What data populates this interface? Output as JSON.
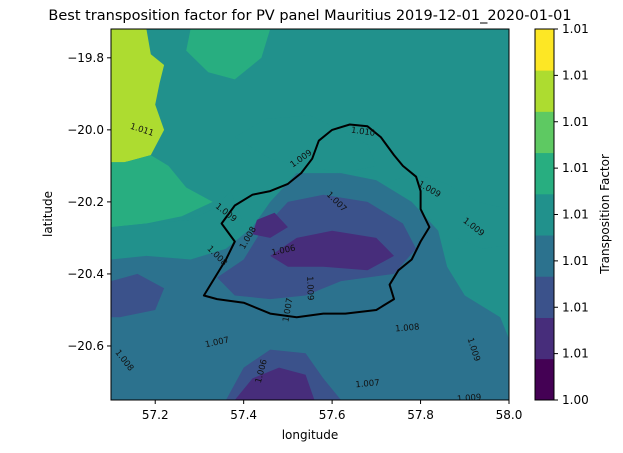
{
  "chart_data": {
    "type": "heatmap",
    "subtype": "filled-contour",
    "title": "Best transposition factor for PV panel Mauritius 2019-12-01_2020-01-01",
    "xlabel": "longitude",
    "ylabel": "latitude",
    "xlim": [
      57.1,
      58.0
    ],
    "ylim": [
      -20.75,
      -19.72
    ],
    "xticks": [
      {
        "value": 57.2,
        "label": "57.2"
      },
      {
        "value": 57.4,
        "label": "57.4"
      },
      {
        "value": 57.6,
        "label": "57.6"
      },
      {
        "value": 57.8,
        "label": "57.8"
      },
      {
        "value": 58.0,
        "label": "58.0"
      }
    ],
    "yticks": [
      {
        "value": -19.8,
        "label": "−19.8"
      },
      {
        "value": -20.0,
        "label": "−20.0"
      },
      {
        "value": -20.2,
        "label": "−20.2"
      },
      {
        "value": -20.4,
        "label": "−20.4"
      },
      {
        "value": -20.6,
        "label": "−20.6"
      }
    ],
    "colorbar": {
      "label": "Transposition Factor",
      "ticks": [
        "1.00",
        "1.01",
        "1.01",
        "1.01",
        "1.01",
        "1.01",
        "1.01",
        "1.01",
        "1.01"
      ],
      "colors": [
        "#440154",
        "#472d7b",
        "#3b528b",
        "#2c728e",
        "#21918c",
        "#28ae80",
        "#5ec962",
        "#addc30",
        "#fde725"
      ]
    },
    "contour_labels": [
      {
        "text": "1.011",
        "lon": 57.17,
        "lat": -20.0,
        "angle": 18
      },
      {
        "text": "1.010",
        "lon": 57.67,
        "lat": -20.005,
        "angle": 8
      },
      {
        "text": "1.009",
        "lon": 57.53,
        "lat": -20.08,
        "angle": -35
      },
      {
        "text": "1.009",
        "lon": 57.82,
        "lat": -20.165,
        "angle": 30
      },
      {
        "text": "1.007",
        "lon": 57.61,
        "lat": -20.2,
        "angle": 45
      },
      {
        "text": "1.009",
        "lon": 57.36,
        "lat": -20.23,
        "angle": 38
      },
      {
        "text": "1.009",
        "lon": 57.92,
        "lat": -20.27,
        "angle": 38
      },
      {
        "text": "1.008",
        "lon": 57.41,
        "lat": -20.3,
        "angle": -60
      },
      {
        "text": "1.006",
        "lon": 57.49,
        "lat": -20.335,
        "angle": -12
      },
      {
        "text": "1.008",
        "lon": 57.34,
        "lat": -20.35,
        "angle": 45
      },
      {
        "text": "1.009",
        "lon": 57.55,
        "lat": -20.44,
        "angle": 88
      },
      {
        "text": "1.007",
        "lon": 57.5,
        "lat": -20.5,
        "angle": -80
      },
      {
        "text": "1.008",
        "lon": 57.77,
        "lat": -20.55,
        "angle": -5
      },
      {
        "text": "1.007",
        "lon": 57.34,
        "lat": -20.59,
        "angle": -12
      },
      {
        "text": "1.009",
        "lon": 57.92,
        "lat": -20.61,
        "angle": 72
      },
      {
        "text": "1.008",
        "lon": 57.13,
        "lat": -20.64,
        "angle": 52
      },
      {
        "text": "1.006",
        "lon": 57.44,
        "lat": -20.67,
        "angle": -75
      },
      {
        "text": "1.007",
        "lon": 57.68,
        "lat": -20.705,
        "angle": -5
      },
      {
        "text": "1.009",
        "lon": 57.91,
        "lat": -20.745,
        "angle": -5
      }
    ],
    "regions": [
      {
        "level": 7,
        "points": [
          [
            57.1,
            -19.72
          ],
          [
            57.18,
            -19.72
          ],
          [
            57.19,
            -19.79
          ],
          [
            57.22,
            -19.82
          ],
          [
            57.21,
            -19.87
          ],
          [
            57.2,
            -19.93
          ],
          [
            57.22,
            -20.0
          ],
          [
            57.19,
            -20.07
          ],
          [
            57.13,
            -20.09
          ],
          [
            57.1,
            -20.09
          ]
        ]
      },
      {
        "level": 5,
        "points": [
          [
            57.1,
            -20.09
          ],
          [
            57.13,
            -20.09
          ],
          [
            57.19,
            -20.07
          ],
          [
            57.23,
            -20.1
          ],
          [
            57.27,
            -20.16
          ],
          [
            57.33,
            -20.2
          ],
          [
            57.26,
            -20.24
          ],
          [
            57.18,
            -20.26
          ],
          [
            57.1,
            -20.27
          ]
        ]
      },
      {
        "level": 5,
        "points": [
          [
            57.28,
            -19.72
          ],
          [
            57.46,
            -19.72
          ],
          [
            57.44,
            -19.8
          ],
          [
            57.38,
            -19.86
          ],
          [
            57.32,
            -19.84
          ],
          [
            57.27,
            -19.78
          ]
        ]
      },
      {
        "level": 4,
        "points": [
          [
            57.1,
            -20.27
          ],
          [
            57.18,
            -20.26
          ],
          [
            57.28,
            -20.25
          ],
          [
            57.33,
            -20.22
          ],
          [
            57.37,
            -20.17
          ],
          [
            57.4,
            -20.26
          ],
          [
            57.36,
            -20.33
          ],
          [
            57.28,
            -20.36
          ],
          [
            57.18,
            -20.35
          ],
          [
            57.1,
            -20.36
          ]
        ]
      },
      {
        "level": 4,
        "points": [
          [
            57.72,
            -20.15
          ],
          [
            57.78,
            -20.12
          ],
          [
            57.86,
            -20.15
          ],
          [
            57.93,
            -20.2
          ],
          [
            58.0,
            -20.22
          ],
          [
            58.0,
            -20.32
          ],
          [
            57.94,
            -20.33
          ],
          [
            57.88,
            -20.3
          ],
          [
            57.84,
            -20.26
          ],
          [
            57.78,
            -20.22
          ]
        ]
      },
      {
        "level": 4,
        "points": [
          [
            57.38,
            -20.02
          ],
          [
            57.45,
            -19.97
          ],
          [
            57.55,
            -19.96
          ],
          [
            57.62,
            -20.0
          ],
          [
            57.68,
            -20.04
          ],
          [
            57.7,
            -20.1
          ],
          [
            57.62,
            -20.12
          ],
          [
            57.54,
            -20.1
          ],
          [
            57.46,
            -20.08
          ]
        ]
      },
      {
        "level": 3,
        "points": [
          [
            57.1,
            -20.36
          ],
          [
            57.18,
            -20.35
          ],
          [
            57.28,
            -20.36
          ],
          [
            57.36,
            -20.33
          ],
          [
            57.42,
            -20.27
          ],
          [
            57.46,
            -20.2
          ],
          [
            57.52,
            -20.12
          ],
          [
            57.62,
            -20.12
          ],
          [
            57.7,
            -20.14
          ],
          [
            57.78,
            -20.2
          ],
          [
            57.84,
            -20.28
          ],
          [
            57.86,
            -20.38
          ],
          [
            57.9,
            -20.46
          ],
          [
            57.98,
            -20.52
          ],
          [
            58.0,
            -20.58
          ],
          [
            58.0,
            -20.75
          ],
          [
            57.1,
            -20.75
          ]
        ]
      },
      {
        "level": 2,
        "points": [
          [
            57.34,
            -20.41
          ],
          [
            57.4,
            -20.36
          ],
          [
            57.44,
            -20.28
          ],
          [
            57.5,
            -20.2
          ],
          [
            57.58,
            -20.18
          ],
          [
            57.68,
            -20.2
          ],
          [
            57.76,
            -20.26
          ],
          [
            57.79,
            -20.33
          ],
          [
            57.74,
            -20.4
          ],
          [
            57.62,
            -20.42
          ],
          [
            57.54,
            -20.46
          ],
          [
            57.46,
            -20.47
          ],
          [
            57.38,
            -20.46
          ]
        ]
      },
      {
        "level": 2,
        "points": [
          [
            57.36,
            -20.75
          ],
          [
            57.4,
            -20.66
          ],
          [
            57.46,
            -20.61
          ],
          [
            57.54,
            -20.62
          ],
          [
            57.58,
            -20.69
          ],
          [
            57.62,
            -20.75
          ]
        ]
      },
      {
        "level": 2,
        "points": [
          [
            57.1,
            -20.42
          ],
          [
            57.16,
            -20.4
          ],
          [
            57.22,
            -20.44
          ],
          [
            57.2,
            -20.5
          ],
          [
            57.12,
            -20.52
          ],
          [
            57.1,
            -20.52
          ]
        ]
      },
      {
        "level": 1,
        "points": [
          [
            57.46,
            -20.35
          ],
          [
            57.52,
            -20.3
          ],
          [
            57.6,
            -20.28
          ],
          [
            57.7,
            -20.3
          ],
          [
            57.74,
            -20.35
          ],
          [
            57.68,
            -20.39
          ],
          [
            57.58,
            -20.38
          ],
          [
            57.5,
            -20.38
          ]
        ]
      },
      {
        "level": 1,
        "points": [
          [
            57.38,
            -20.75
          ],
          [
            57.42,
            -20.69
          ],
          [
            57.48,
            -20.66
          ],
          [
            57.54,
            -20.68
          ],
          [
            57.56,
            -20.75
          ]
        ]
      },
      {
        "level": 1,
        "points": [
          [
            57.43,
            -20.25
          ],
          [
            57.47,
            -20.23
          ],
          [
            57.5,
            -20.27
          ],
          [
            57.46,
            -20.3
          ],
          [
            57.42,
            -20.29
          ]
        ]
      }
    ],
    "coastline": [
      [
        57.555,
        -20.08
      ],
      [
        57.57,
        -20.03
      ],
      [
        57.6,
        -20.0
      ],
      [
        57.64,
        -19.985
      ],
      [
        57.68,
        -19.99
      ],
      [
        57.71,
        -20.02
      ],
      [
        57.74,
        -20.07
      ],
      [
        57.76,
        -20.1
      ],
      [
        57.79,
        -20.13
      ],
      [
        57.8,
        -20.17
      ],
      [
        57.8,
        -20.22
      ],
      [
        57.82,
        -20.27
      ],
      [
        57.8,
        -20.31
      ],
      [
        57.78,
        -20.36
      ],
      [
        57.75,
        -20.39
      ],
      [
        57.73,
        -20.43
      ],
      [
        57.74,
        -20.47
      ],
      [
        57.7,
        -20.5
      ],
      [
        57.63,
        -20.51
      ],
      [
        57.58,
        -20.51
      ],
      [
        57.52,
        -20.52
      ],
      [
        57.46,
        -20.51
      ],
      [
        57.4,
        -20.48
      ],
      [
        57.34,
        -20.47
      ],
      [
        57.31,
        -20.46
      ],
      [
        57.33,
        -20.42
      ],
      [
        57.36,
        -20.36
      ],
      [
        57.38,
        -20.31
      ],
      [
        57.35,
        -20.26
      ],
      [
        57.38,
        -20.21
      ],
      [
        57.42,
        -20.18
      ],
      [
        57.46,
        -20.17
      ],
      [
        57.5,
        -20.15
      ],
      [
        57.53,
        -20.12
      ],
      [
        57.555,
        -20.08
      ]
    ]
  }
}
